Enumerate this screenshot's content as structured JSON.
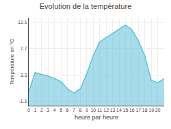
{
  "chart_data": {
    "type": "area",
    "title": "Evolution de la température",
    "xlabel": "heure par heure",
    "ylabel": "Température en °C",
    "x": [
      0,
      1,
      2,
      3,
      4,
      5,
      6,
      7,
      8,
      9,
      10,
      11,
      12,
      13,
      14,
      15,
      16,
      17,
      18,
      19,
      20,
      21
    ],
    "values": [
      0.5,
      3.7,
      3.4,
      3.1,
      2.7,
      2.2,
      1.0,
      0.3,
      1.0,
      3.5,
      6.5,
      8.8,
      9.5,
      10.2,
      10.8,
      11.6,
      10.8,
      9.0,
      6.5,
      2.4,
      2.0,
      2.7
    ],
    "color": "#62c0d8",
    "xlim": [
      0,
      21
    ],
    "xticks": [
      0,
      1,
      2,
      3,
      4,
      5,
      6,
      7,
      8,
      9,
      10,
      11,
      12,
      13,
      14,
      15,
      16,
      17,
      18,
      19,
      20
    ],
    "ylim": [
      -1.8,
      12.8
    ],
    "yticks": [
      -1.1,
      3.3,
      7.7,
      12.1
    ],
    "grid": true
  }
}
